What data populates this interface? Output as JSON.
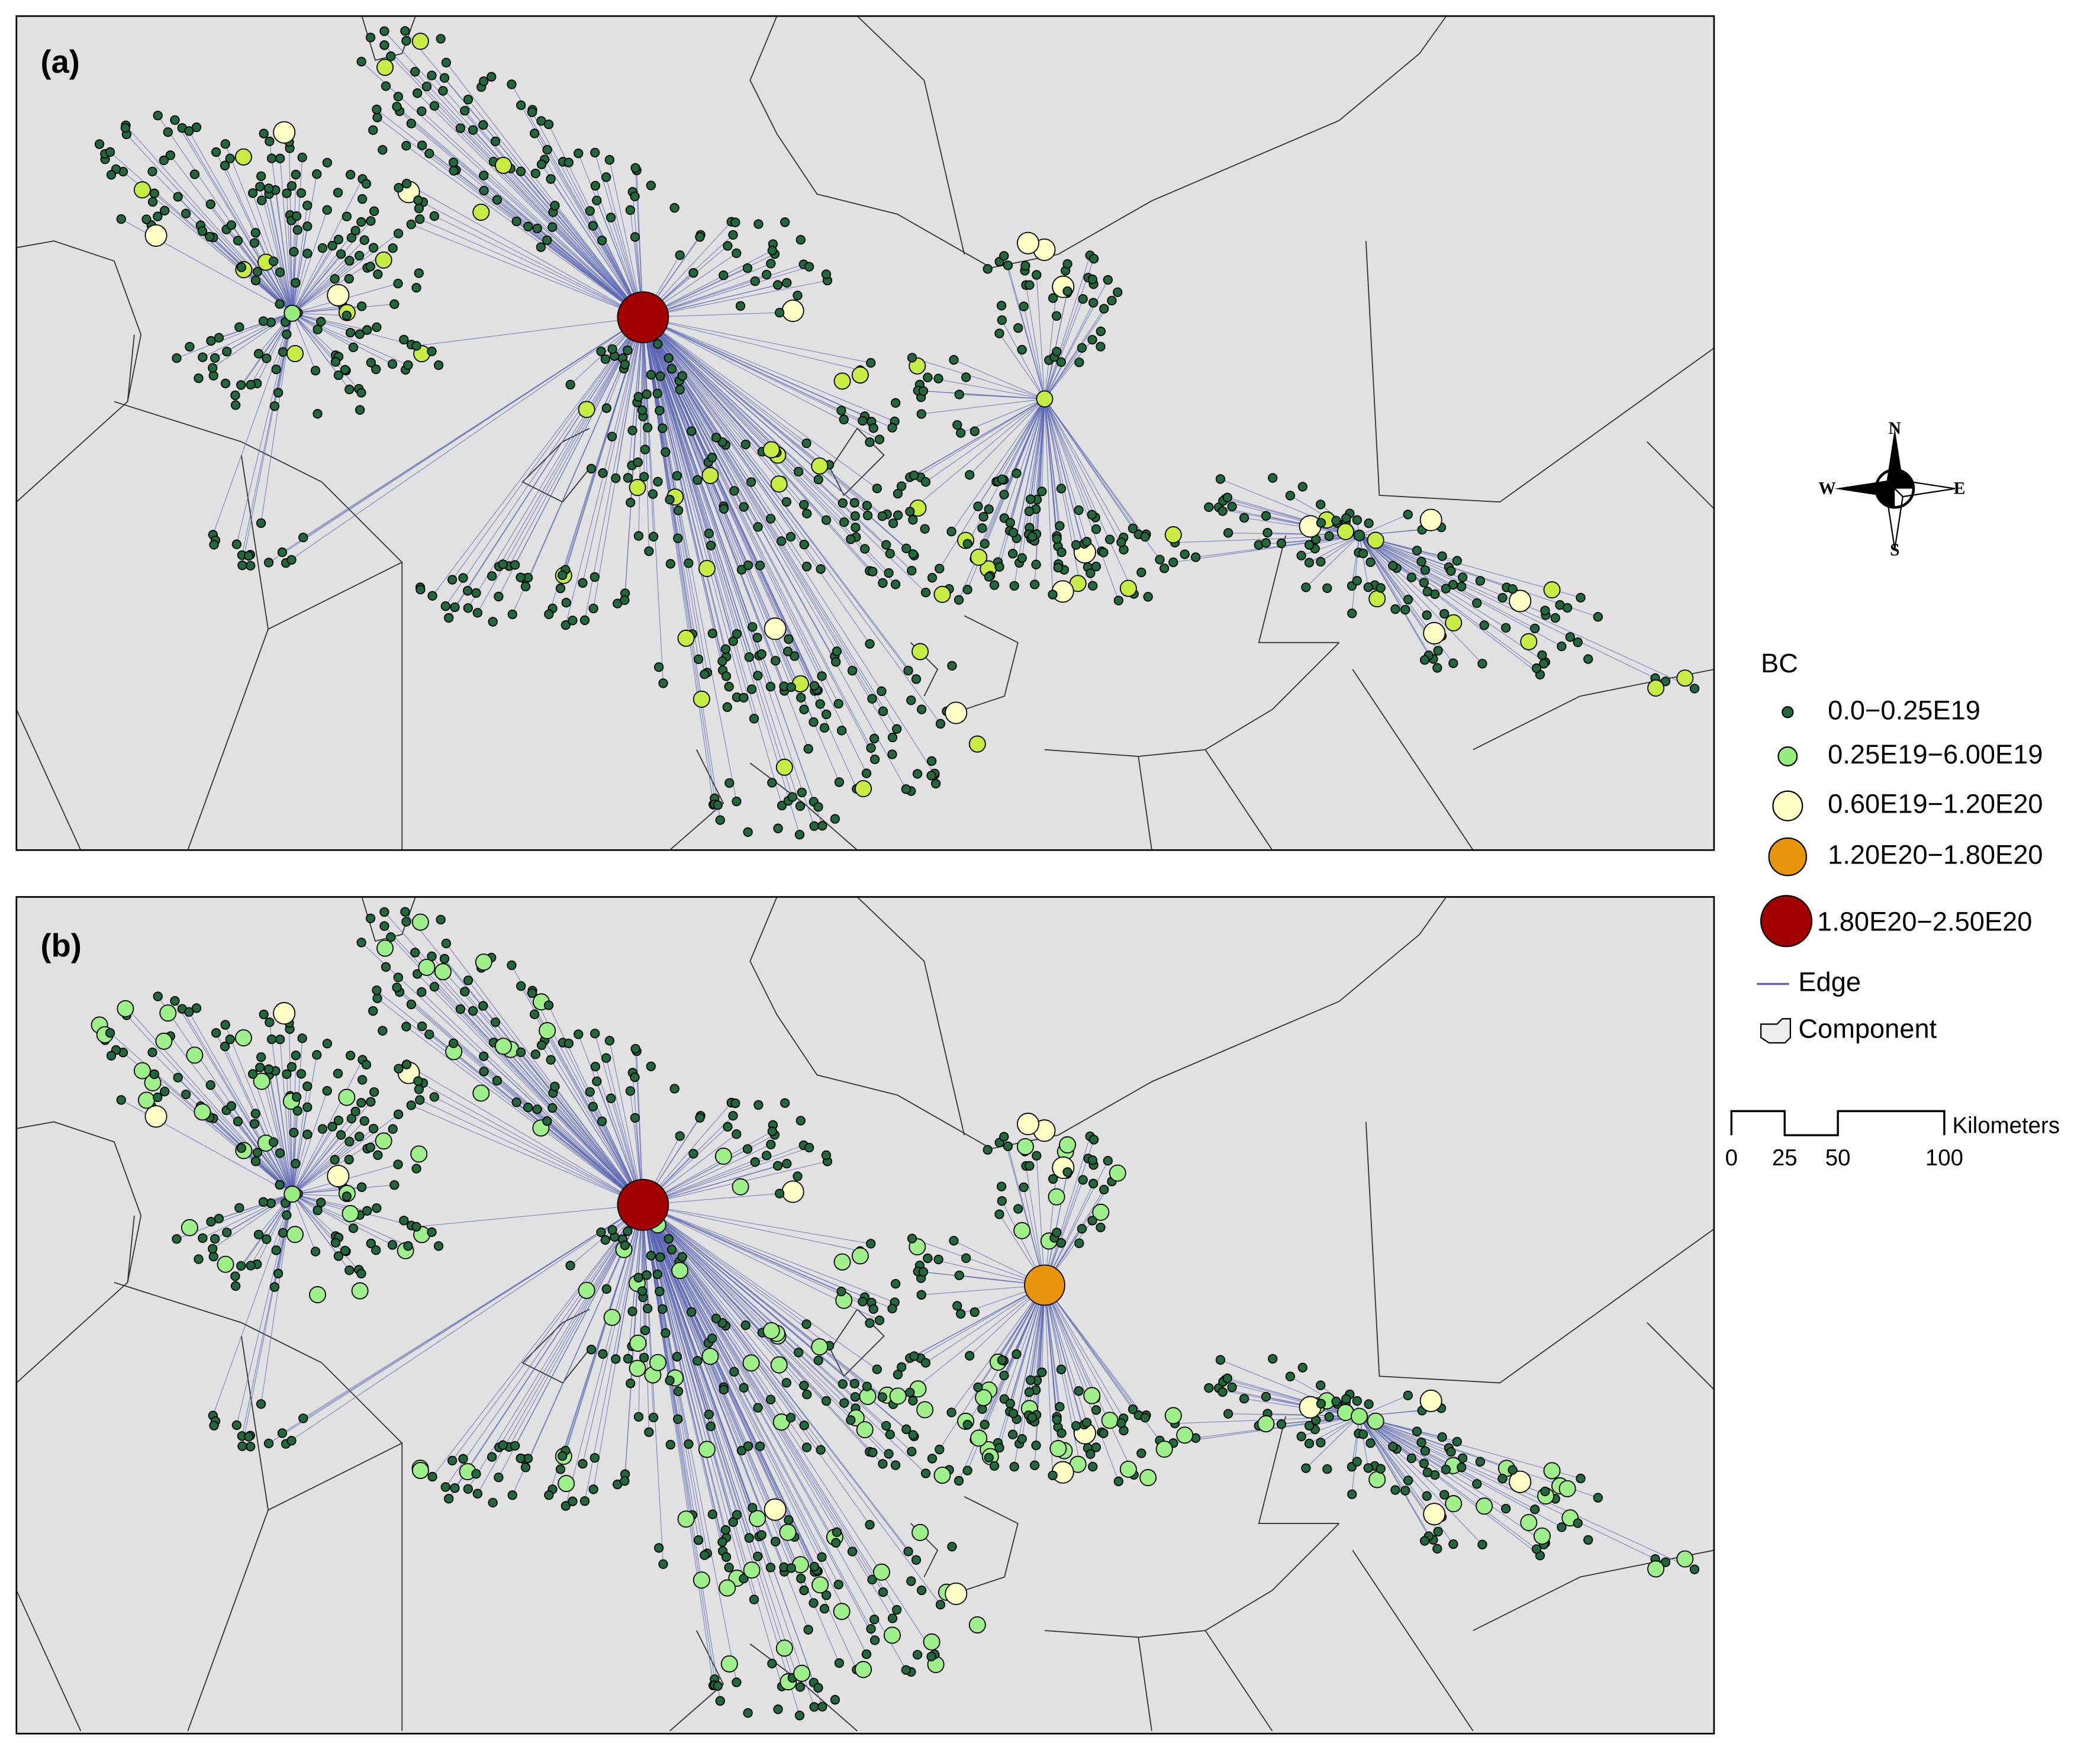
{
  "panels": [
    {
      "label": "(a)"
    },
    {
      "label": "(b)"
    }
  ],
  "legend": {
    "title": "BC",
    "items": [
      "0.0−0.25E19",
      "0.25E19−6.00E19",
      "0.60E19−1.20E20",
      "1.20E20−1.80E20",
      "1.80E20−2.50E20"
    ],
    "edge": "Edge",
    "component": "Component"
  },
  "compass": {
    "n": "N",
    "s": "S",
    "e": "E",
    "w": "W"
  },
  "scale_bar": {
    "unit": "Kilometers",
    "ticks": [
      0,
      25,
      50,
      100
    ]
  }
}
